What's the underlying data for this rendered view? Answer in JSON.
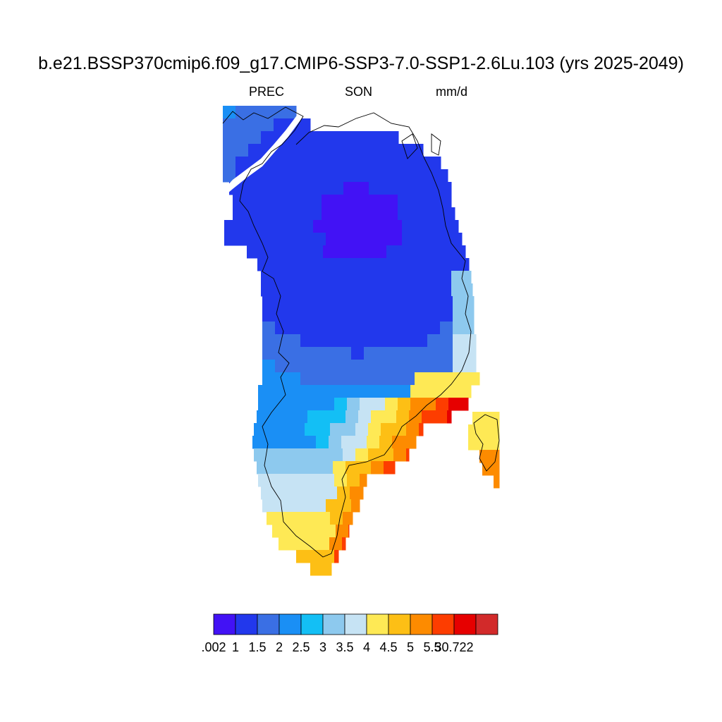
{
  "title": "b.e21.BSSP370cmip6.f09_g17.CMIP6-SSP3-7.0-SSP1-2.6Lu.103 (yrs 2025-2049)",
  "left_label": "PREC",
  "center_label": "SON",
  "right_label": "mm/d",
  "colorbar": {
    "colors": [
      "#4212f5",
      "#2238ec",
      "#3a6fe4",
      "#1a8ff5",
      "#13bff5",
      "#8dc9ee",
      "#c6e3f4",
      "#fee955",
      "#fdbf15",
      "#fd8b00",
      "#fd3d00",
      "#e60000",
      "#d22a2a"
    ],
    "tick_labels": [
      ".002",
      "1",
      "1.5",
      "2",
      "2.5",
      "3",
      "3.5",
      "4",
      "4.5",
      "5",
      "5.5",
      "30.722"
    ]
  }
}
